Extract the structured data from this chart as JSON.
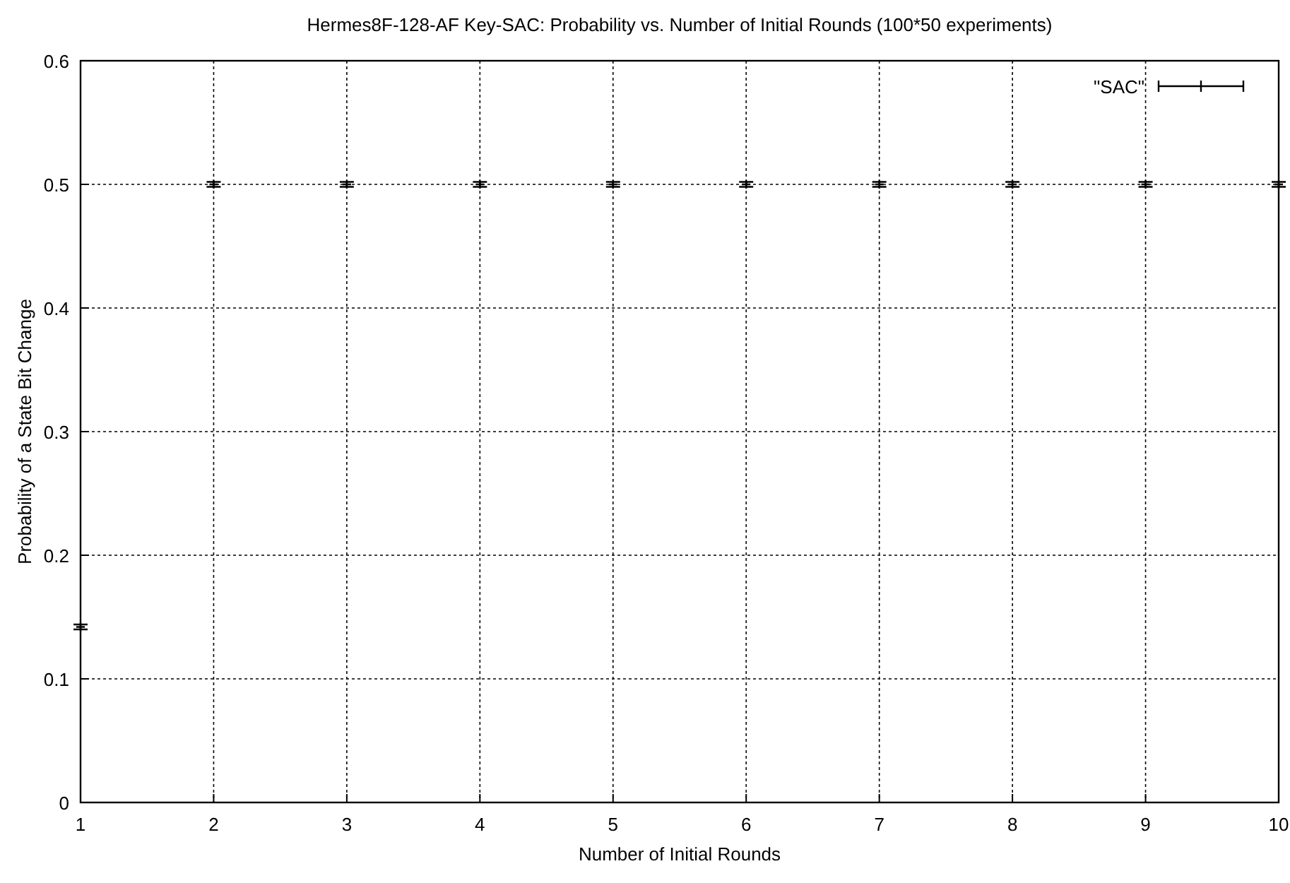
{
  "chart_data": {
    "type": "scatter",
    "title": "Hermes8F-128-AF Key-SAC: Probability  vs. Number of Initial Rounds  (100*50 experiments)",
    "xlabel": "Number of Initial Rounds",
    "ylabel": "Probability of a State Bit Change",
    "x": [
      1,
      2,
      3,
      4,
      5,
      6,
      7,
      8,
      9,
      10
    ],
    "series": [
      {
        "name": "\"SAC\"",
        "color": "#000000",
        "values": [
          0.142,
          0.5,
          0.5,
          0.5,
          0.5,
          0.5,
          0.5,
          0.5,
          0.5,
          0.5
        ],
        "errors": [
          0.002,
          0.002,
          0.002,
          0.002,
          0.002,
          0.002,
          0.002,
          0.002,
          0.002,
          0.002
        ]
      }
    ],
    "xlim": [
      1,
      10
    ],
    "xticks": [
      1,
      2,
      3,
      4,
      5,
      6,
      7,
      8,
      9,
      10
    ],
    "ylim": [
      0,
      0.6
    ],
    "yticks": [
      0,
      0.1,
      0.2,
      0.3,
      0.4,
      0.5,
      0.6
    ],
    "grid": true,
    "legend": "top right",
    "marker": "cross"
  }
}
